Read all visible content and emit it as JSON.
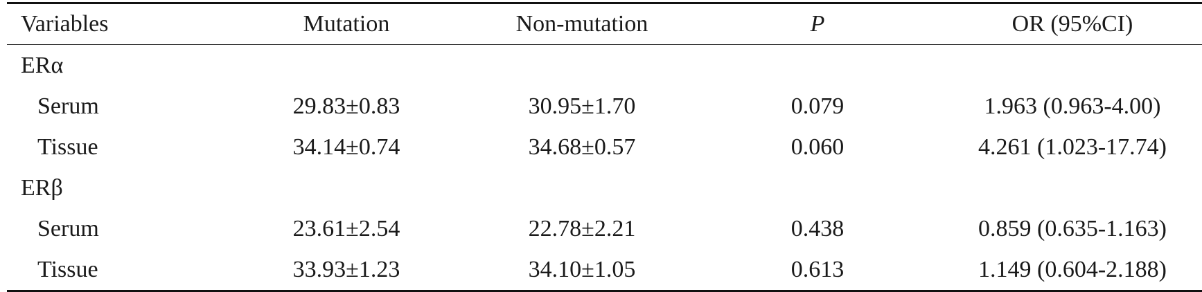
{
  "table": {
    "headers": {
      "variables": "Variables",
      "mutation": "Mutation",
      "non_mutation": "Non-mutation",
      "p": "P",
      "or": "OR (95%CI)"
    },
    "groups": [
      {
        "label": "ERα",
        "rows": [
          {
            "name": "Serum",
            "mutation": "29.83±0.83",
            "non_mutation": "30.95±1.70",
            "p": "0.079",
            "or": "1.963 (0.963-4.00)"
          },
          {
            "name": "Tissue",
            "mutation": "34.14±0.74",
            "non_mutation": "34.68±0.57",
            "p": "0.060",
            "or": "4.261 (1.023-17.74)"
          }
        ]
      },
      {
        "label": "ERβ",
        "rows": [
          {
            "name": "Serum",
            "mutation": "23.61±2.54",
            "non_mutation": "22.78±2.21",
            "p": "0.438",
            "or": "0.859 (0.635-1.163)"
          },
          {
            "name": "Tissue",
            "mutation": "33.93±1.23",
            "non_mutation": "34.10±1.05",
            "p": "0.613",
            "or": "1.149 (0.604-2.188)"
          }
        ]
      }
    ]
  }
}
